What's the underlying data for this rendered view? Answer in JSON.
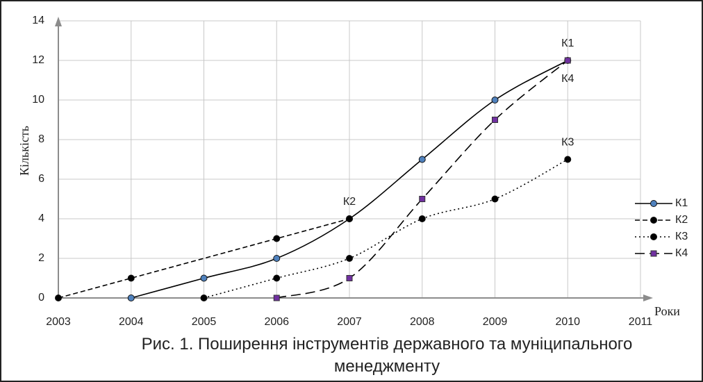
{
  "chart_data": {
    "type": "line",
    "title": "Рис. 1. Поширення інструментів державного та муніципального менеджменту",
    "x_label": "Роки",
    "y_label": "Кількість",
    "xlim": [
      2003,
      2011
    ],
    "xticks": [
      2003,
      2004,
      2005,
      2006,
      2007,
      2008,
      2009,
      2010,
      2011
    ],
    "ylim": [
      0,
      14
    ],
    "yticks": [
      0,
      2,
      4,
      6,
      8,
      10,
      12,
      14
    ],
    "grid": true,
    "legend": "right",
    "series": [
      {
        "name": "К1",
        "color": "#000000",
        "marker_color": "#4f81bd",
        "marker": "circle",
        "line_style": "solid",
        "smooth": true,
        "x": [
          2004,
          2005,
          2006,
          2007,
          2008,
          2009,
          2010
        ],
        "values": [
          0,
          1,
          2,
          4,
          7,
          10,
          12
        ]
      },
      {
        "name": "К2",
        "color": "#000000",
        "marker_color": "#000000",
        "marker": "circle",
        "line_style": "dashed",
        "smooth": false,
        "x": [
          2003,
          2004,
          2006,
          2007
        ],
        "values": [
          0,
          1,
          3,
          4
        ]
      },
      {
        "name": "К3",
        "color": "#000000",
        "marker_color": "#000000",
        "marker": "circle",
        "line_style": "dotted",
        "smooth": true,
        "x": [
          2005,
          2006,
          2007,
          2008,
          2009,
          2010
        ],
        "values": [
          0,
          1,
          2,
          4,
          5,
          7
        ]
      },
      {
        "name": "К4",
        "color": "#000000",
        "marker_color": "#7030a0",
        "marker": "square",
        "line_style": "longdash",
        "smooth": true,
        "x": [
          2006,
          2007,
          2008,
          2009,
          2010
        ],
        "values": [
          0,
          1,
          5,
          9,
          12
        ]
      }
    ],
    "annotations": [
      {
        "text": "К1",
        "x": 2010,
        "y": 12,
        "position": "above"
      },
      {
        "text": "К4",
        "x": 2010,
        "y": 12,
        "position": "below"
      },
      {
        "text": "К3",
        "x": 2010,
        "y": 7,
        "position": "above"
      },
      {
        "text": "К2",
        "x": 2007,
        "y": 4,
        "position": "above"
      }
    ]
  }
}
